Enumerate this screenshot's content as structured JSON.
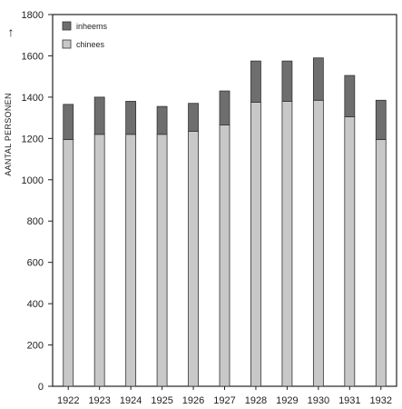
{
  "chart_data": {
    "type": "bar",
    "stacked": true,
    "title": "",
    "xlabel": "",
    "ylabel": "AANTAL PERSONEN",
    "ylabel_arrow": "↑",
    "ylim": [
      0,
      1800
    ],
    "yticks": [
      0,
      200,
      400,
      600,
      800,
      1000,
      1200,
      1400,
      1600,
      1800
    ],
    "grid": false,
    "legend_position": "top-left",
    "categories": [
      "1922",
      "1923",
      "1924",
      "1925",
      "1926",
      "1927",
      "1928",
      "1929",
      "1930",
      "1931",
      "1932"
    ],
    "series": [
      {
        "name": "chinees",
        "color": "#c8c8c8",
        "values": [
          1195,
          1220,
          1220,
          1220,
          1235,
          1265,
          1375,
          1380,
          1385,
          1305,
          1195
        ]
      },
      {
        "name": "inheems",
        "color": "#6e6e6e",
        "values": [
          170,
          180,
          160,
          135,
          135,
          165,
          200,
          195,
          205,
          200,
          190
        ]
      }
    ],
    "legend_order": [
      "inheems",
      "chinees"
    ]
  }
}
